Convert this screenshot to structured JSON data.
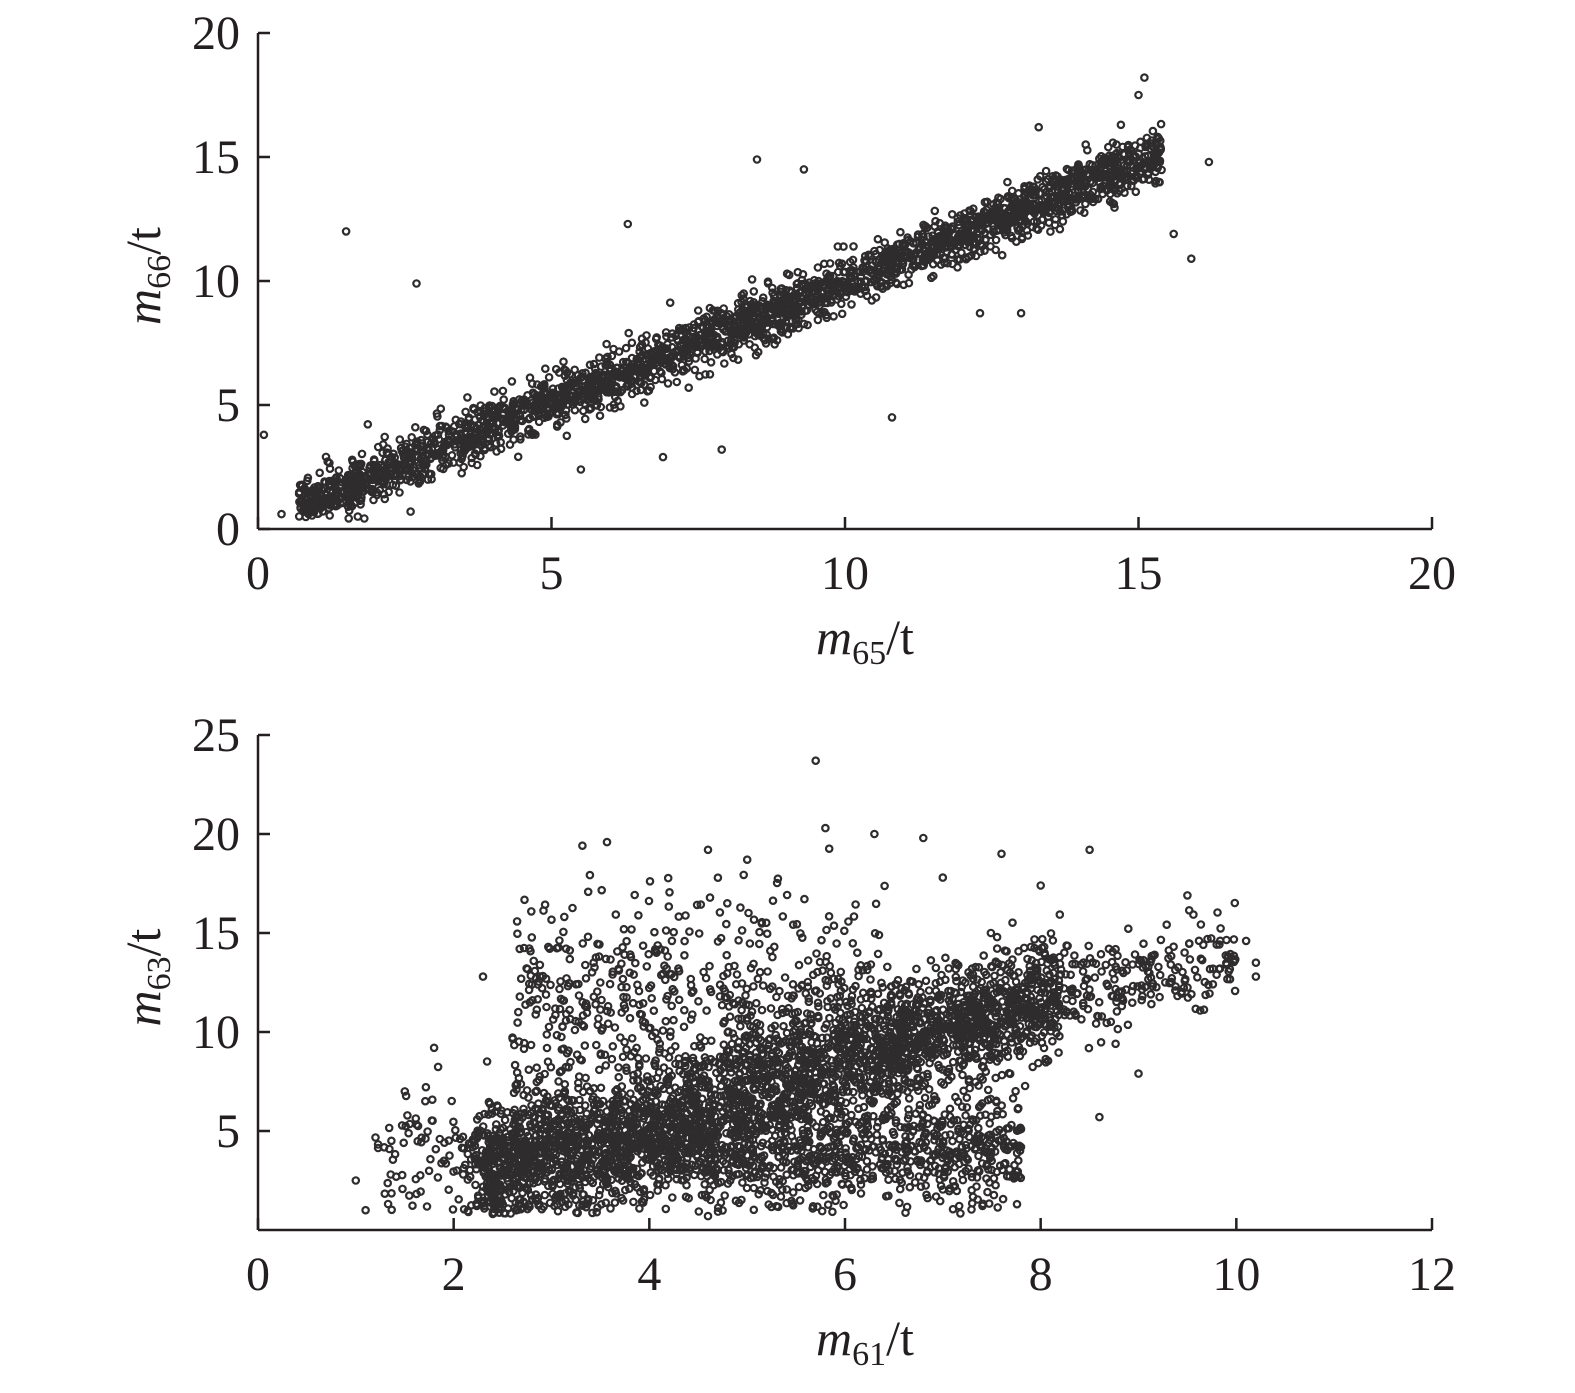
{
  "chart_data": [
    {
      "type": "scatter",
      "title": "",
      "xlabel": {
        "var": "m",
        "sub": "65",
        "unit": "/t"
      },
      "ylabel": {
        "var": "m",
        "sub": "66",
        "unit": "/t"
      },
      "xlim": [
        0,
        20
      ],
      "ylim": [
        0,
        20
      ],
      "xticks": [
        "0",
        "5",
        "10",
        "15",
        "20"
      ],
      "yticks": [
        "0",
        "5",
        "10",
        "15",
        "20"
      ],
      "grid": false,
      "legend": "none",
      "marker_color": "#2f2c2d",
      "points": [
        [
          0.1,
          3.8
        ],
        [
          1.5,
          12.0
        ],
        [
          2.7,
          9.9
        ],
        [
          8.5,
          14.9
        ],
        [
          9.3,
          14.5
        ],
        [
          10.8,
          4.5
        ],
        [
          15.1,
          18.2
        ],
        [
          15.0,
          17.5
        ],
        [
          15.3,
          15.0
        ],
        [
          16.2,
          14.8
        ],
        [
          15.6,
          11.9
        ],
        [
          15.9,
          10.9
        ],
        [
          14.7,
          16.3
        ],
        [
          14.1,
          15.5
        ],
        [
          13.3,
          16.2
        ],
        [
          5.5,
          2.4
        ],
        [
          7.9,
          3.2
        ],
        [
          6.9,
          2.9
        ],
        [
          12.3,
          8.7
        ],
        [
          13.0,
          8.7
        ],
        [
          0.4,
          0.6
        ],
        [
          1.7,
          0.5
        ],
        [
          2.6,
          0.7
        ],
        [
          6.3,
          12.3
        ]
      ],
      "clusters": [
        {
          "x_range": [
            0.7,
            15.4
          ],
          "slope": 0.97,
          "intercept": 0.25,
          "spread": 0.55,
          "count": 2600
        }
      ]
    },
    {
      "type": "scatter",
      "title": "",
      "xlabel": {
        "var": "m",
        "sub": "61",
        "unit": "/t"
      },
      "ylabel": {
        "var": "m",
        "sub": "63",
        "unit": "/t"
      },
      "xlim": [
        0,
        12
      ],
      "ylim": [
        0,
        25
      ],
      "xticks": [
        "0",
        "2",
        "4",
        "6",
        "8",
        "10",
        "12"
      ],
      "yticks": [
        "5",
        "10",
        "15",
        "20",
        "25"
      ],
      "grid": false,
      "legend": "none",
      "marker_color": "#2f2c2d",
      "points": [
        [
          5.7,
          23.7
        ],
        [
          5.8,
          20.3
        ],
        [
          6.3,
          20.0
        ],
        [
          6.8,
          19.8
        ],
        [
          7.6,
          19.0
        ],
        [
          8.5,
          19.2
        ],
        [
          4.6,
          19.2
        ],
        [
          5.0,
          18.7
        ],
        [
          9.5,
          16.9
        ],
        [
          10.1,
          14.6
        ],
        [
          10.2,
          13.5
        ],
        [
          10.2,
          12.8
        ],
        [
          9.9,
          13.4
        ],
        [
          9.0,
          7.9
        ],
        [
          8.6,
          5.7
        ],
        [
          4.6,
          0.7
        ],
        [
          5.3,
          1.2
        ],
        [
          1.0,
          2.5
        ],
        [
          1.1,
          1.0
        ],
        [
          1.5,
          7.0
        ],
        [
          1.8,
          9.2
        ],
        [
          2.3,
          12.8
        ],
        [
          8.0,
          17.4
        ],
        [
          7.0,
          17.8
        ]
      ],
      "clusters": [
        {
          "x_range": [
            2.3,
            8.2
          ],
          "slope": 1.55,
          "intercept": -0.8,
          "spread": 1.6,
          "count": 2200
        },
        {
          "x_range": [
            2.2,
            7.8
          ],
          "y_center": 4.0,
          "y_spread": 1.4,
          "count": 1400
        },
        {
          "x_range": [
            2.6,
            6.5
          ],
          "y_center": 11.5,
          "y_spread": 2.8,
          "count": 650
        },
        {
          "x_range": [
            6.5,
            10.0
          ],
          "slope": 1.1,
          "intercept": 2.8,
          "spread": 1.1,
          "count": 420
        },
        {
          "x_range": [
            1.2,
            2.8
          ],
          "y_center": 3.6,
          "y_spread": 1.8,
          "count": 140
        }
      ]
    }
  ]
}
